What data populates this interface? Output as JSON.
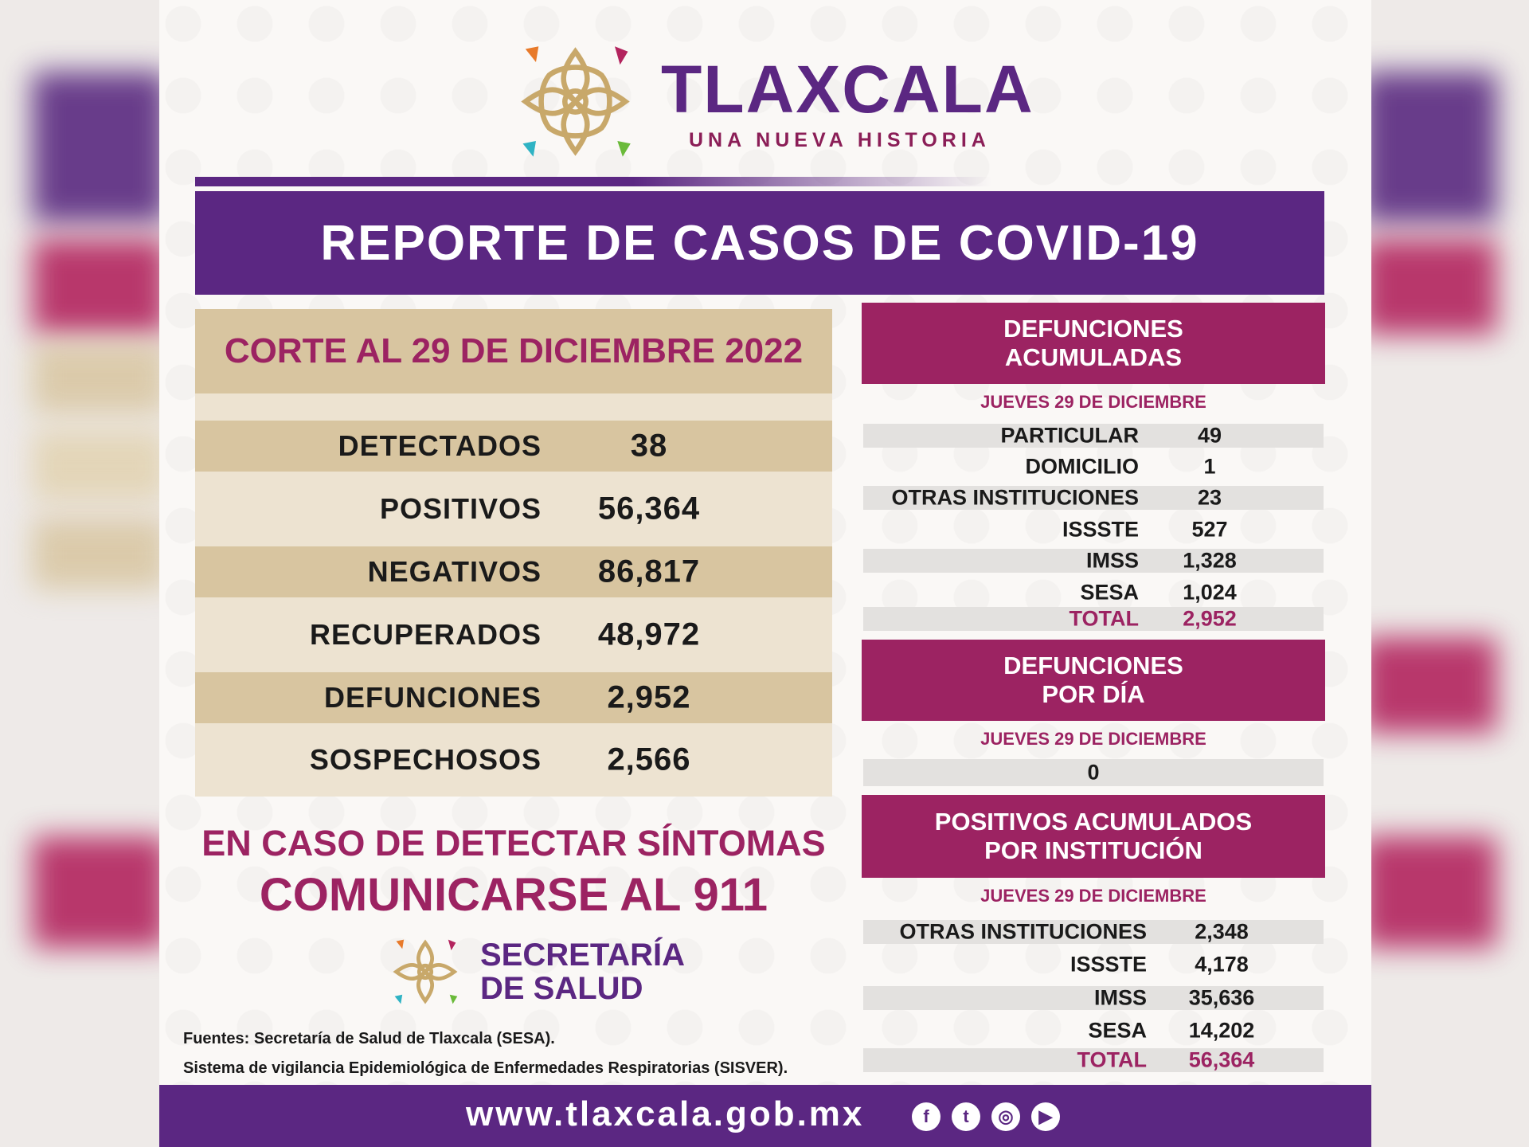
{
  "colors": {
    "purple": "#5b2782",
    "magenta": "#9c2362",
    "tan": "#d8c5a0",
    "tan_light": "#ede3d1",
    "gray_row": "#e3e1df"
  },
  "brand": {
    "title": "TLAXCALA",
    "subtitle": "UNA NUEVA HISTORIA"
  },
  "banner": {
    "title": "REPORTE DE CASOS DE COVID-19"
  },
  "corte": "CORTE AL 29 DE DICIEMBRE 2022",
  "stats": [
    {
      "label": "DETECTADOS",
      "value": "38"
    },
    {
      "label": "POSITIVOS",
      "value": "56,364"
    },
    {
      "label": "NEGATIVOS",
      "value": "86,817"
    },
    {
      "label": "RECUPERADOS",
      "value": "48,972"
    },
    {
      "label": "DEFUNCIONES",
      "value": "2,952"
    },
    {
      "label": "SOSPECHOSOS",
      "value": "2,566"
    }
  ],
  "cta": {
    "line1": "EN CASO DE DETECTAR SÍNTOMAS",
    "line2": "COMUNICARSE AL 911"
  },
  "secretaria": {
    "line1": "SECRETARÍA",
    "line2": "DE SALUD"
  },
  "fuentes": {
    "line1": "Fuentes:  Secretaría de Salud de Tlaxcala (SESA).",
    "line2": "Sistema de vigilancia Epidemiológica de Enfermedades Respiratorias (SISVER)."
  },
  "defunciones_acumuladas": {
    "title_line1": "DEFUNCIONES",
    "title_line2": "ACUMULADAS",
    "date": "JUEVES 29 DE DICIEMBRE",
    "rows": [
      {
        "label": "PARTICULAR",
        "value": "49"
      },
      {
        "label": "DOMICILIO",
        "value": "1"
      },
      {
        "label": "OTRAS INSTITUCIONES",
        "value": "23"
      },
      {
        "label": "ISSSTE",
        "value": "527"
      },
      {
        "label": "IMSS",
        "value": "1,328"
      },
      {
        "label": "SESA",
        "value": "1,024"
      },
      {
        "label": "TOTAL",
        "value": "2,952"
      }
    ]
  },
  "defunciones_dia": {
    "title_line1": "DEFUNCIONES",
    "title_line2": "POR DÍA",
    "date": "JUEVES 29 DE DICIEMBRE",
    "value": "0"
  },
  "positivos_institucion": {
    "title_line1": "POSITIVOS ACUMULADOS",
    "title_line2": "POR INSTITUCIÓN",
    "date": "JUEVES 29 DE DICIEMBRE",
    "rows": [
      {
        "label": "OTRAS INSTITUCIONES",
        "value": "2,348"
      },
      {
        "label": "ISSSTE",
        "value": "4,178"
      },
      {
        "label": "IMSS",
        "value": "35,636"
      },
      {
        "label": "SESA",
        "value": "14,202"
      },
      {
        "label": "TOTAL",
        "value": "56,364"
      }
    ]
  },
  "footer": {
    "url": "www.tlaxcala.gob.mx",
    "social": [
      {
        "icon": "facebook-icon",
        "glyph": "f"
      },
      {
        "icon": "twitter-icon",
        "glyph": "t"
      },
      {
        "icon": "instagram-icon",
        "glyph": "◎"
      },
      {
        "icon": "youtube-icon",
        "glyph": "▶"
      }
    ]
  }
}
